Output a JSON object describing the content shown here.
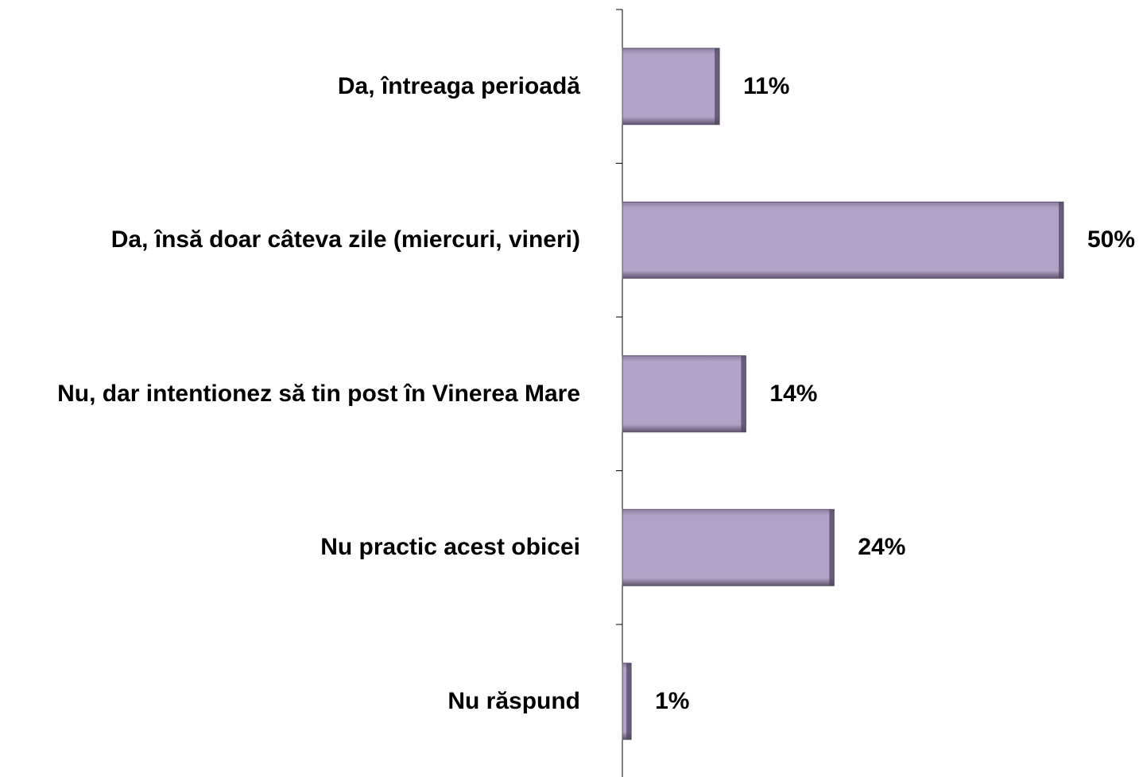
{
  "chart_data": {
    "type": "bar",
    "orientation": "horizontal",
    "categories": [
      "Da, întreaga perioadă",
      "Da, însă doar câteva zile (miercuri, vineri)",
      "Nu, dar intentionez să tin post în Vinerea Mare",
      "Nu practic acest obicei",
      "Nu răspund"
    ],
    "values": [
      11,
      50,
      14,
      24,
      1
    ],
    "value_labels": [
      "11%",
      "50%",
      "14%",
      "24%",
      "1%"
    ],
    "color": "#b3a2c7"
  }
}
